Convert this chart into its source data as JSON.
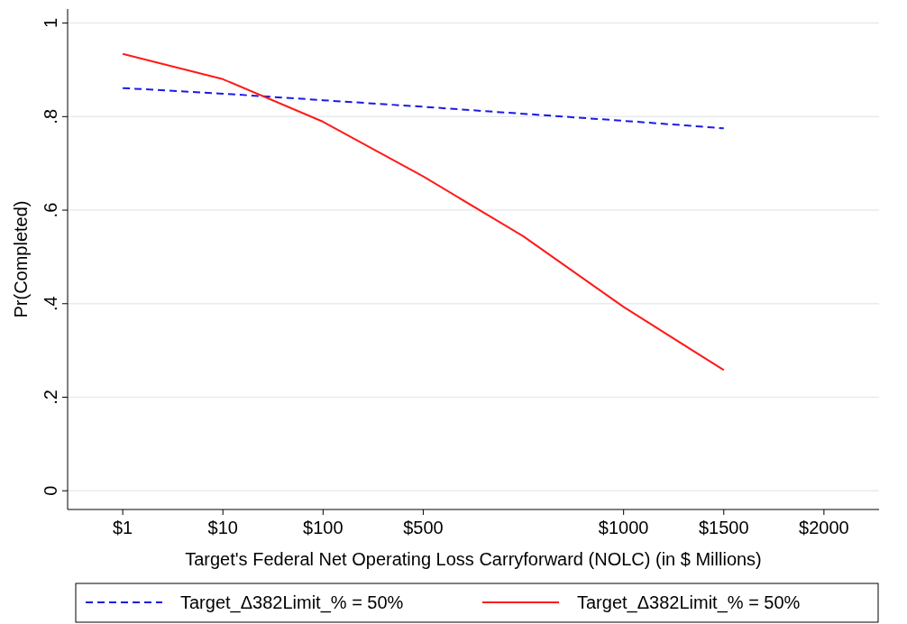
{
  "chart_data": {
    "type": "line",
    "xlabel": "Target's Federal Net Operating Loss Carryforward (NOLC) (in $ Millions)",
    "ylabel": "Pr(Completed)",
    "categories": [
      "$1",
      "$10",
      "$100",
      "$500",
      null,
      "$1000",
      "$1500",
      "$2000"
    ],
    "ylim": [
      -0.04,
      1.03
    ],
    "yticks": [
      {
        "value": 0,
        "label": "0"
      },
      {
        "value": 0.2,
        "label": ".2"
      },
      {
        "value": 0.4,
        "label": ".4"
      },
      {
        "value": 0.6,
        "label": ".6"
      },
      {
        "value": 0.8,
        "label": ".8"
      },
      {
        "value": 1,
        "label": "1"
      }
    ],
    "grid": "y",
    "legend": "bottom",
    "series": [
      {
        "name": "Target_Δ382Limit_% = 50%",
        "color": "#1a1ae6",
        "line_style": "dashed",
        "values": [
          0.861,
          0.849,
          0.835,
          0.821,
          0.806,
          0.791,
          0.775,
          null
        ]
      },
      {
        "name": "Target_Δ382Limit_% = 50%",
        "color": "#ff1a1a",
        "line_style": "solid",
        "values": [
          0.934,
          0.88,
          0.789,
          0.672,
          0.544,
          0.393,
          0.258,
          null
        ]
      }
    ]
  }
}
